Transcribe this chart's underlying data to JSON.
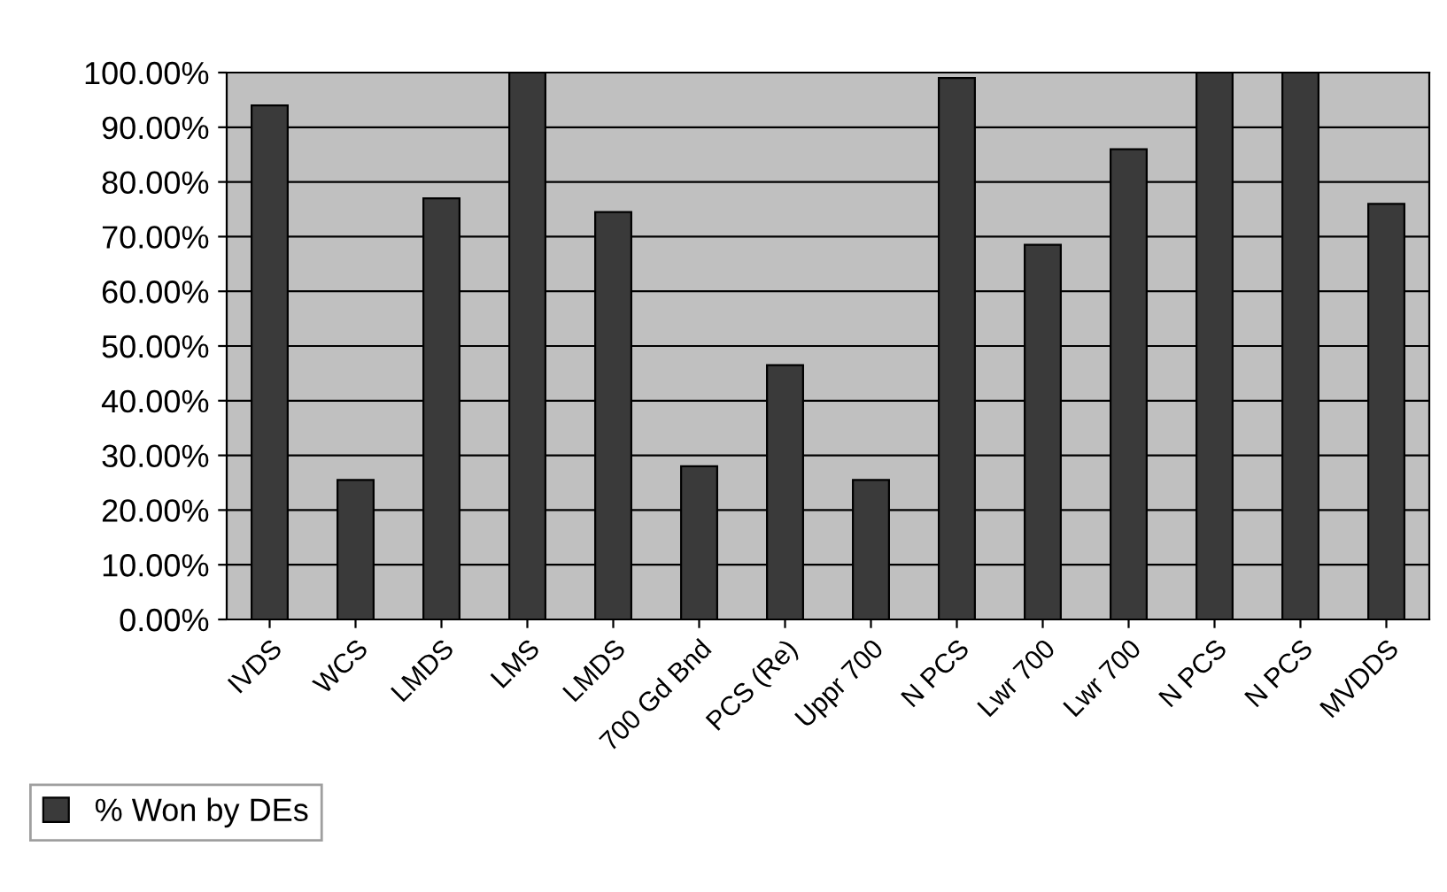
{
  "chart_data": {
    "type": "bar",
    "categories": [
      "IVDS",
      "WCS",
      "LMDS",
      "LMS",
      "LMDS",
      "700 Gd Bnd",
      "PCS (Re)",
      "Uppr 700",
      "N PCS",
      "Lwr 700",
      "Lwr 700",
      "N PCS",
      "N PCS",
      "MVDDS"
    ],
    "series": [
      {
        "name": "% Won by DEs",
        "color": "#3a3a3a",
        "values": [
          94,
          25.5,
          77,
          100,
          74.5,
          28,
          46.5,
          25.5,
          99,
          68.5,
          86,
          100,
          100,
          76
        ]
      }
    ],
    "ylim": [
      0,
      100
    ],
    "yticks": [
      {
        "value": 0,
        "label": "0.00%"
      },
      {
        "value": 10,
        "label": "10.00%"
      },
      {
        "value": 20,
        "label": "20.00%"
      },
      {
        "value": 30,
        "label": "30.00%"
      },
      {
        "value": 40,
        "label": "40.00%"
      },
      {
        "value": 50,
        "label": "50.00%"
      },
      {
        "value": 60,
        "label": "60.00%"
      },
      {
        "value": 70,
        "label": "70.00%"
      },
      {
        "value": 80,
        "label": "80.00%"
      },
      {
        "value": 90,
        "label": "90.00%"
      },
      {
        "value": 100,
        "label": "100.00%"
      }
    ],
    "grid": "y",
    "legend": "bottom left"
  }
}
